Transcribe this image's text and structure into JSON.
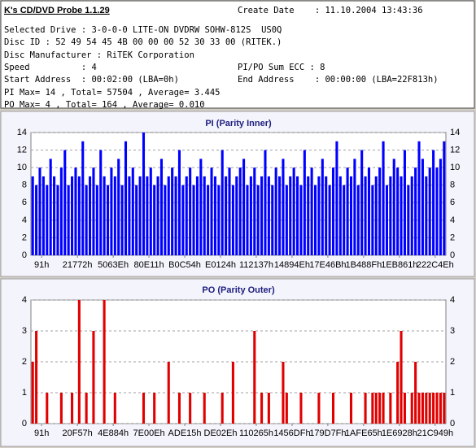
{
  "header": {
    "title": "K's CD/DVD Probe 1.1.29",
    "lines": [
      [
        "Create Date    : 11.10.2004 13:43:36"
      ],
      [
        "Selected Drive : 3-0-0-0 LITE-ON DVDRW SOHW-812S  US0Q"
      ],
      [
        "Disc ID : 52 49 54 45 4B 00 00 00 52 30 33 00 (RITEK.)"
      ],
      [
        "Disc Manufacturer : RiTEK Corporation"
      ],
      [
        "Speed          : 4",
        "PI/PO Sum ECC : 8"
      ],
      [
        "Start Address  : 00:02:00 (LBA=0h)",
        "End Address    : 00:00:00 (LBA=22F813h)"
      ],
      [
        "PI Max= 14 , Total= 57504 , Average= 3.445"
      ],
      [
        "PO Max= 4 , Total= 164 , Average= 0.010"
      ]
    ]
  },
  "chart_data": [
    {
      "type": "bar",
      "title": "PI (Parity Inner)",
      "color": "#0000ff",
      "grid": true,
      "ylim": [
        0,
        14
      ],
      "yticks": [
        0,
        2,
        4,
        6,
        8,
        10,
        12,
        14
      ],
      "xlim": [
        0,
        116
      ],
      "xticks": [
        {
          "value": 3,
          "label": "91h"
        },
        {
          "value": 13,
          "label": "21772h"
        },
        {
          "value": 23,
          "label": "5063Eh"
        },
        {
          "value": 33,
          "label": "80E11h"
        },
        {
          "value": 43,
          "label": "B0C54h"
        },
        {
          "value": 53,
          "label": "E0124h"
        },
        {
          "value": 63,
          "label": "112137h"
        },
        {
          "value": 73,
          "label": "14894Eh"
        },
        {
          "value": 83,
          "label": "17E46Bh"
        },
        {
          "value": 93,
          "label": "1B488Fh"
        },
        {
          "value": 103,
          "label": "1EB861h"
        },
        {
          "value": 113,
          "label": "222C4Eh"
        }
      ],
      "values": [
        9,
        8,
        10,
        9,
        8,
        11,
        9,
        8,
        10,
        12,
        8,
        9,
        10,
        9,
        13,
        8,
        9,
        10,
        8,
        12,
        9,
        8,
        10,
        9,
        11,
        8,
        13,
        9,
        10,
        8,
        9,
        14,
        9,
        10,
        8,
        9,
        11,
        8,
        9,
        10,
        9,
        12,
        8,
        9,
        10,
        8,
        9,
        11,
        9,
        8,
        10,
        9,
        8,
        12,
        9,
        10,
        8,
        9,
        10,
        11,
        8,
        9,
        10,
        8,
        9,
        12,
        9,
        8,
        10,
        9,
        11,
        8,
        9,
        10,
        9,
        8,
        12,
        9,
        10,
        8,
        9,
        11,
        9,
        8,
        10,
        13,
        9,
        8,
        10,
        9,
        11,
        8,
        12,
        9,
        10,
        8,
        9,
        10,
        13,
        8,
        9,
        11,
        10,
        9,
        12,
        8,
        9,
        10,
        13,
        11,
        9,
        10,
        12,
        10,
        11,
        13
      ]
    },
    {
      "type": "bar",
      "title": "PO (Parity Outer)",
      "color": "#e00000",
      "grid": true,
      "ylim": [
        0,
        4
      ],
      "yticks": [
        0,
        1,
        2,
        3,
        4
      ],
      "xlim": [
        0,
        116
      ],
      "xticks": [
        {
          "value": 3,
          "label": "91h"
        },
        {
          "value": 13,
          "label": "20F57h"
        },
        {
          "value": 23,
          "label": "4E884h"
        },
        {
          "value": 33,
          "label": "7E00Eh"
        },
        {
          "value": 43,
          "label": "ADE15h"
        },
        {
          "value": 53,
          "label": "DE02Eh"
        },
        {
          "value": 63,
          "label": "110265h"
        },
        {
          "value": 73,
          "label": "1456DFh"
        },
        {
          "value": 83,
          "label": "179D7Fh"
        },
        {
          "value": 93,
          "label": "1AFE65h"
        },
        {
          "value": 103,
          "label": "1E6928h"
        },
        {
          "value": 113,
          "label": "21C949h"
        }
      ],
      "values": [
        2,
        3,
        0,
        0,
        1,
        0,
        0,
        0,
        1,
        0,
        0,
        1,
        0,
        4,
        0,
        1,
        0,
        3,
        0,
        0,
        4,
        0,
        0,
        1,
        0,
        0,
        0,
        0,
        0,
        0,
        0,
        1,
        0,
        0,
        1,
        0,
        0,
        0,
        2,
        0,
        0,
        1,
        0,
        0,
        1,
        0,
        0,
        0,
        1,
        0,
        0,
        0,
        0,
        1,
        0,
        0,
        2,
        0,
        0,
        0,
        0,
        0,
        3,
        0,
        1,
        0,
        1,
        0,
        0,
        0,
        2,
        1,
        0,
        0,
        0,
        1,
        0,
        0,
        0,
        0,
        1,
        0,
        0,
        0,
        1,
        0,
        0,
        0,
        0,
        1,
        0,
        0,
        0,
        1,
        0,
        1,
        1,
        1,
        1,
        0,
        1,
        0,
        2,
        3,
        1,
        0,
        1,
        2,
        1,
        1,
        1,
        1,
        1,
        1,
        1,
        1
      ]
    }
  ]
}
